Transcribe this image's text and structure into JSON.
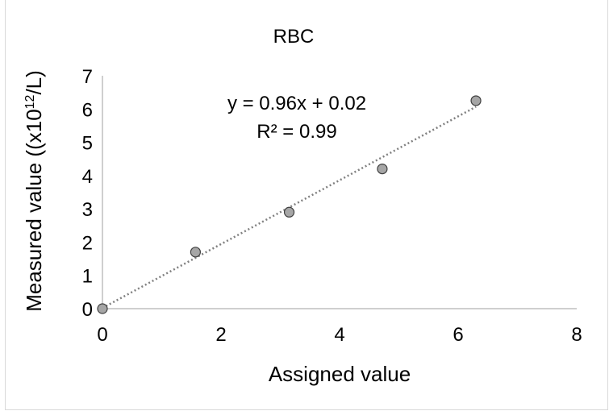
{
  "chart_data": {
    "type": "scatter",
    "title": "RBC",
    "xlabel": "Assigned value",
    "ylabel_prefix": "Measured value ((x10",
    "ylabel_superscript": "12",
    "ylabel_suffix": "/L)",
    "xlim": [
      0,
      8
    ],
    "ylim": [
      0,
      7
    ],
    "x_ticks": [
      "0",
      "2",
      "4",
      "6",
      "8"
    ],
    "y_ticks": [
      "0",
      "1",
      "2",
      "3",
      "4",
      "5",
      "6",
      "7"
    ],
    "grid": false,
    "legend": "none",
    "series": [
      {
        "x": [
          0,
          1.57,
          3.15,
          4.72,
          6.3
        ],
        "y": [
          0,
          1.7,
          2.9,
          4.2,
          6.25
        ],
        "marker_color": "#a6a6a6",
        "marker_edge": "#404040"
      }
    ],
    "trendline": {
      "slope": 0.96,
      "intercept": 0.02,
      "color": "#808080",
      "style": "dotted",
      "equation": "y = 0.96x + 0.02",
      "r_squared": "R² = 0.99"
    }
  }
}
